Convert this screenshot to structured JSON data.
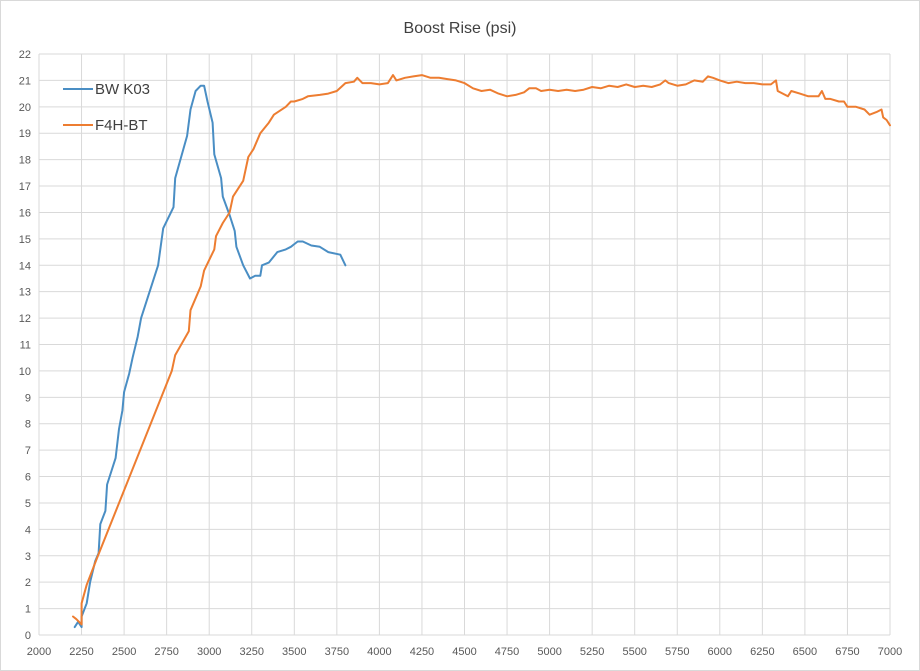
{
  "chart_data": {
    "type": "line",
    "title": "Boost Rise (psi)",
    "xlabel": "",
    "ylabel": "",
    "xlim": [
      2000,
      7000
    ],
    "ylim": [
      0,
      22
    ],
    "x_ticks": [
      "2000",
      "2250",
      "2500",
      "2750",
      "3000",
      "3250",
      "3500",
      "3750",
      "4000",
      "4250",
      "4500",
      "4750",
      "5000",
      "5250",
      "5500",
      "5750",
      "6000",
      "6250",
      "6500",
      "6750",
      "7000"
    ],
    "y_ticks": [
      "0",
      "1",
      "2",
      "3",
      "4",
      "5",
      "6",
      "7",
      "8",
      "9",
      "10",
      "11",
      "12",
      "13",
      "14",
      "15",
      "16",
      "17",
      "18",
      "19",
      "20",
      "21",
      "22"
    ],
    "grid": true,
    "legend_position": "top-left",
    "series": [
      {
        "name": "BW K03",
        "color": "#4a8ec4",
        "points": [
          [
            2210,
            0.3
          ],
          [
            2230,
            0.5
          ],
          [
            2250,
            0.3
          ],
          [
            2250,
            0.7
          ],
          [
            2280,
            1.2
          ],
          [
            2300,
            2.0
          ],
          [
            2330,
            2.8
          ],
          [
            2350,
            3.1
          ],
          [
            2360,
            4.2
          ],
          [
            2390,
            4.7
          ],
          [
            2400,
            5.7
          ],
          [
            2450,
            6.7
          ],
          [
            2470,
            7.8
          ],
          [
            2490,
            8.5
          ],
          [
            2500,
            9.2
          ],
          [
            2530,
            9.9
          ],
          [
            2550,
            10.5
          ],
          [
            2580,
            11.3
          ],
          [
            2600,
            12.0
          ],
          [
            2650,
            13.0
          ],
          [
            2700,
            14.0
          ],
          [
            2730,
            15.4
          ],
          [
            2790,
            16.2
          ],
          [
            2800,
            17.3
          ],
          [
            2870,
            18.9
          ],
          [
            2890,
            19.9
          ],
          [
            2920,
            20.6
          ],
          [
            2950,
            20.8
          ],
          [
            2970,
            20.8
          ],
          [
            2990,
            20.2
          ],
          [
            3020,
            19.4
          ],
          [
            3030,
            18.2
          ],
          [
            3070,
            17.3
          ],
          [
            3080,
            16.6
          ],
          [
            3120,
            15.9
          ],
          [
            3150,
            15.3
          ],
          [
            3160,
            14.7
          ],
          [
            3200,
            14.0
          ],
          [
            3240,
            13.5
          ],
          [
            3270,
            13.6
          ],
          [
            3300,
            13.6
          ],
          [
            3310,
            14.0
          ],
          [
            3350,
            14.1
          ],
          [
            3400,
            14.5
          ],
          [
            3450,
            14.6
          ],
          [
            3480,
            14.7
          ],
          [
            3500,
            14.8
          ],
          [
            3520,
            14.9
          ],
          [
            3550,
            14.9
          ],
          [
            3600,
            14.75
          ],
          [
            3650,
            14.7
          ],
          [
            3700,
            14.5
          ],
          [
            3770,
            14.4
          ],
          [
            3800,
            14.0
          ]
        ]
      },
      {
        "name": "F4H-BT",
        "color": "#ed7d31",
        "points": [
          [
            2200,
            0.7
          ],
          [
            2220,
            0.6
          ],
          [
            2250,
            0.4
          ],
          [
            2250,
            1.2
          ],
          [
            2280,
            1.9
          ],
          [
            2340,
            2.9
          ],
          [
            2780,
            10.0
          ],
          [
            2800,
            10.6
          ],
          [
            2880,
            11.5
          ],
          [
            2890,
            12.3
          ],
          [
            2950,
            13.2
          ],
          [
            2970,
            13.8
          ],
          [
            3030,
            14.6
          ],
          [
            3040,
            15.1
          ],
          [
            3080,
            15.6
          ],
          [
            3120,
            16.0
          ],
          [
            3140,
            16.6
          ],
          [
            3170,
            16.9
          ],
          [
            3200,
            17.2
          ],
          [
            3230,
            18.1
          ],
          [
            3260,
            18.4
          ],
          [
            3300,
            19.0
          ],
          [
            3350,
            19.4
          ],
          [
            3380,
            19.7
          ],
          [
            3450,
            20.0
          ],
          [
            3480,
            20.2
          ],
          [
            3500,
            20.2
          ],
          [
            3550,
            20.3
          ],
          [
            3580,
            20.4
          ],
          [
            3650,
            20.45
          ],
          [
            3700,
            20.5
          ],
          [
            3750,
            20.6
          ],
          [
            3800,
            20.9
          ],
          [
            3850,
            20.95
          ],
          [
            3870,
            21.1
          ],
          [
            3900,
            20.9
          ],
          [
            3950,
            20.9
          ],
          [
            4000,
            20.85
          ],
          [
            4050,
            20.9
          ],
          [
            4080,
            21.2
          ],
          [
            4100,
            21.0
          ],
          [
            4150,
            21.1
          ],
          [
            4200,
            21.15
          ],
          [
            4250,
            21.2
          ],
          [
            4300,
            21.1
          ],
          [
            4350,
            21.1
          ],
          [
            4400,
            21.05
          ],
          [
            4450,
            21.0
          ],
          [
            4500,
            20.9
          ],
          [
            4550,
            20.7
          ],
          [
            4600,
            20.6
          ],
          [
            4650,
            20.65
          ],
          [
            4700,
            20.5
          ],
          [
            4750,
            20.4
          ],
          [
            4800,
            20.45
          ],
          [
            4850,
            20.55
          ],
          [
            4880,
            20.7
          ],
          [
            4920,
            20.7
          ],
          [
            4950,
            20.6
          ],
          [
            5000,
            20.65
          ],
          [
            5050,
            20.6
          ],
          [
            5100,
            20.65
          ],
          [
            5150,
            20.6
          ],
          [
            5200,
            20.65
          ],
          [
            5250,
            20.75
          ],
          [
            5300,
            20.7
          ],
          [
            5350,
            20.8
          ],
          [
            5400,
            20.75
          ],
          [
            5450,
            20.85
          ],
          [
            5500,
            20.75
          ],
          [
            5550,
            20.8
          ],
          [
            5600,
            20.75
          ],
          [
            5650,
            20.85
          ],
          [
            5680,
            21.0
          ],
          [
            5700,
            20.9
          ],
          [
            5750,
            20.8
          ],
          [
            5800,
            20.85
          ],
          [
            5850,
            21.0
          ],
          [
            5900,
            20.95
          ],
          [
            5930,
            21.15
          ],
          [
            5960,
            21.1
          ],
          [
            6000,
            21.0
          ],
          [
            6050,
            20.9
          ],
          [
            6100,
            20.95
          ],
          [
            6150,
            20.9
          ],
          [
            6200,
            20.9
          ],
          [
            6250,
            20.85
          ],
          [
            6300,
            20.85
          ],
          [
            6330,
            21.0
          ],
          [
            6340,
            20.6
          ],
          [
            6400,
            20.4
          ],
          [
            6420,
            20.6
          ],
          [
            6470,
            20.5
          ],
          [
            6520,
            20.4
          ],
          [
            6580,
            20.4
          ],
          [
            6600,
            20.6
          ],
          [
            6620,
            20.3
          ],
          [
            6650,
            20.3
          ],
          [
            6700,
            20.2
          ],
          [
            6730,
            20.2
          ],
          [
            6750,
            20.0
          ],
          [
            6800,
            20.0
          ],
          [
            6850,
            19.9
          ],
          [
            6880,
            19.7
          ],
          [
            6920,
            19.8
          ],
          [
            6950,
            19.9
          ],
          [
            6960,
            19.6
          ],
          [
            6980,
            19.5
          ],
          [
            7000,
            19.3
          ]
        ]
      }
    ]
  }
}
